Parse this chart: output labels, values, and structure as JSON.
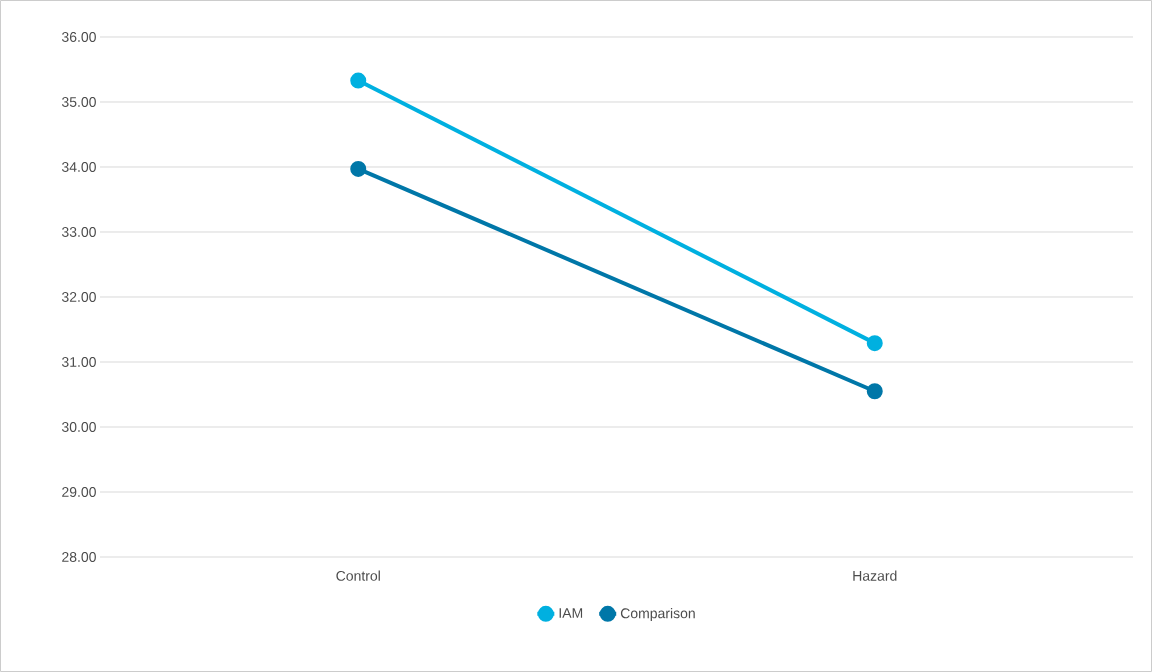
{
  "chart_data": {
    "type": "line",
    "categories": [
      "Control",
      "Hazard"
    ],
    "series": [
      {
        "name": "IAM",
        "color": "#00b0e0",
        "values": [
          35.33,
          31.29
        ]
      },
      {
        "name": "Comparison",
        "color": "#0077a8",
        "values": [
          33.97,
          30.55
        ]
      }
    ],
    "ylim": [
      28,
      36
    ],
    "yticks": [
      {
        "value": 28,
        "label": "28.00"
      },
      {
        "value": 29,
        "label": "29.00"
      },
      {
        "value": 30,
        "label": "30.00"
      },
      {
        "value": 31,
        "label": "31.00"
      },
      {
        "value": 32,
        "label": "32.00"
      },
      {
        "value": 33,
        "label": "33.00"
      },
      {
        "value": 34,
        "label": "34.00"
      },
      {
        "value": 35,
        "label": "35.00"
      },
      {
        "value": 36,
        "label": "36.00"
      }
    ],
    "grid": "y",
    "legend": "bottom",
    "marker": "circle",
    "line_style": "solid"
  }
}
